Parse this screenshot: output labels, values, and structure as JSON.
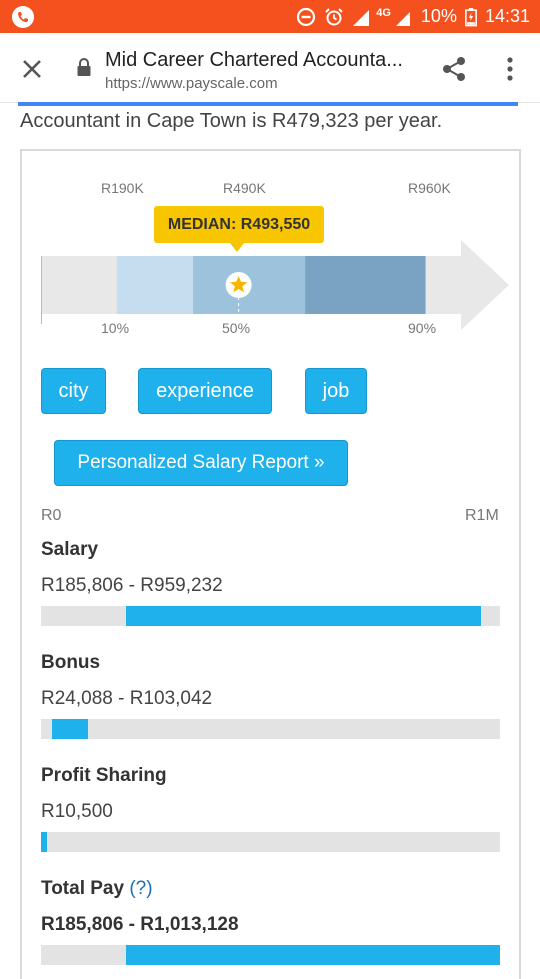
{
  "status_bar": {
    "network": "4G",
    "battery": "10%",
    "time": "14:31"
  },
  "browser": {
    "title": "Mid Career Chartered Accounta...",
    "url": "https://www.payscale.com"
  },
  "intro_text": "Accountant in Cape Town is R479,323 per year.",
  "range_chart": {
    "top_labels": [
      "R190K",
      "R490K",
      "R960K"
    ],
    "bottom_labels": [
      "10%",
      "50%",
      "90%"
    ],
    "median_label": "MEDIAN: R493,550",
    "median_value": 493550,
    "segments": [
      {
        "from": 0.163,
        "to": 0.327,
        "color": "#c5ddee"
      },
      {
        "from": 0.327,
        "to": 0.568,
        "color": "#9dc2dc"
      },
      {
        "from": 0.568,
        "to": 0.827,
        "color": "#7aa3c3"
      }
    ],
    "median_position": 0.425
  },
  "filters": {
    "city": "city",
    "experience": "experience",
    "job": "job"
  },
  "report_button": "Personalized Salary Report »",
  "scale": {
    "min_label": "R0",
    "max_label": "R1M"
  },
  "pay_items": [
    {
      "label": "Salary",
      "range": "R185,806 - R959,232",
      "from": 185806,
      "to": 959232,
      "max": 1000000
    },
    {
      "label": "Bonus",
      "range": "R24,088 - R103,042",
      "from": 24088,
      "to": 103042,
      "max": 1000000
    },
    {
      "label": "Profit Sharing",
      "range": "R10,500",
      "from": 0,
      "to": 10500,
      "max": 1000000
    },
    {
      "label": "Total Pay",
      "help": "(?)",
      "range": "R185,806 - R1,013,128",
      "from": 185806,
      "to": 1013128,
      "max": 1000000
    }
  ],
  "colors": {
    "status_bar": "#f4511e",
    "accent_blue": "#1fb1ec",
    "median_yellow": "#f7c600",
    "track_grey": "#e3e3e3"
  }
}
